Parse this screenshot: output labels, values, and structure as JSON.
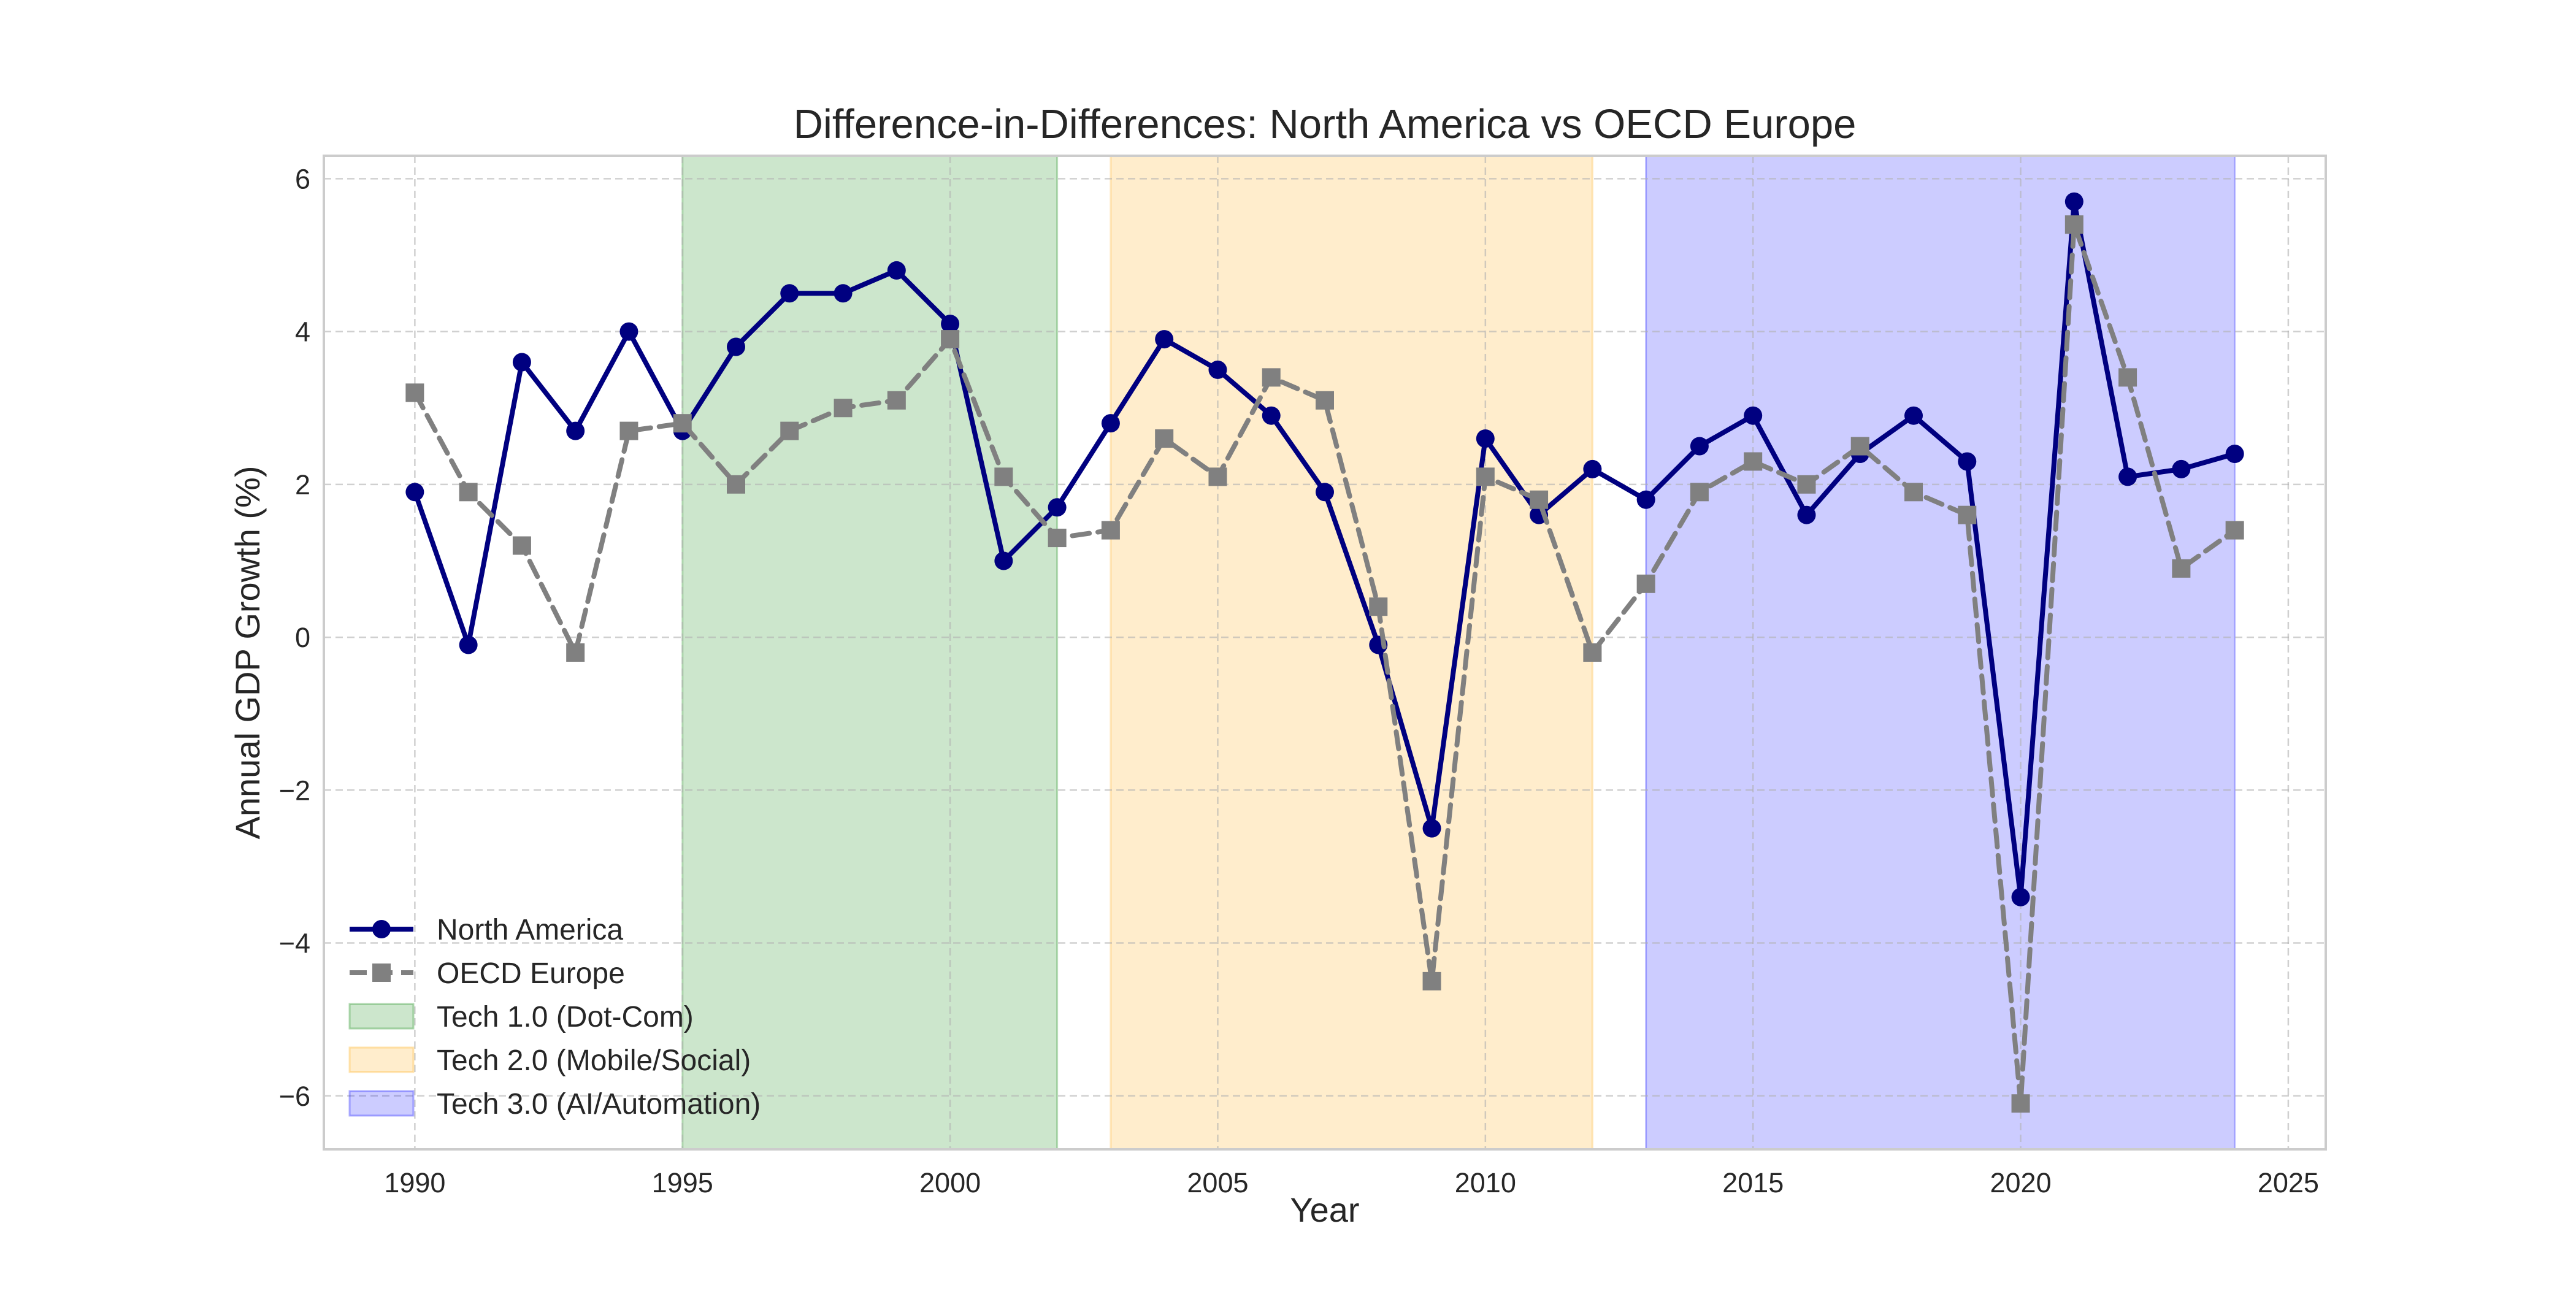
{
  "chart_data": {
    "type": "line",
    "title": "Difference-in-Differences: North America vs OECD Europe",
    "xlabel": "Year",
    "ylabel": "Annual GDP Growth (%)",
    "xlim": [
      1988.3,
      2025.7
    ],
    "ylim": [
      -6.7,
      6.3
    ],
    "xticks": [
      1990,
      1995,
      2000,
      2005,
      2010,
      2015,
      2020,
      2025
    ],
    "yticks": [
      -6,
      -4,
      -2,
      0,
      2,
      4,
      6
    ],
    "grid": true,
    "legend_position": "lower-left",
    "x": [
      1990,
      1991,
      1992,
      1993,
      1994,
      1995,
      1996,
      1997,
      1998,
      1999,
      2000,
      2001,
      2002,
      2003,
      2004,
      2005,
      2006,
      2007,
      2008,
      2009,
      2010,
      2011,
      2012,
      2013,
      2014,
      2015,
      2016,
      2017,
      2018,
      2019,
      2020,
      2021,
      2022,
      2023,
      2024
    ],
    "series": [
      {
        "name": "North America",
        "color": "#000080",
        "line_style": "solid",
        "marker": "circle",
        "values": [
          1.9,
          -0.1,
          3.6,
          2.7,
          4.0,
          2.7,
          3.8,
          4.5,
          4.5,
          4.8,
          4.1,
          1.0,
          1.7,
          2.8,
          3.9,
          3.5,
          2.9,
          1.9,
          -0.1,
          -2.5,
          2.6,
          1.6,
          2.2,
          1.8,
          2.5,
          2.9,
          1.6,
          2.4,
          2.9,
          2.3,
          -3.4,
          5.7,
          2.1,
          2.2,
          2.4
        ]
      },
      {
        "name": "OECD Europe",
        "color": "#808080",
        "line_style": "dashed",
        "marker": "square",
        "values": [
          3.2,
          1.9,
          1.2,
          -0.2,
          2.7,
          2.8,
          2.0,
          2.7,
          3.0,
          3.1,
          3.9,
          2.1,
          1.3,
          1.4,
          2.6,
          2.1,
          3.4,
          3.1,
          0.4,
          -4.5,
          2.1,
          1.8,
          -0.2,
          0.7,
          1.9,
          2.3,
          2.0,
          2.5,
          1.9,
          1.6,
          -6.1,
          5.4,
          3.4,
          0.9,
          1.4
        ]
      }
    ],
    "shaded_periods": [
      {
        "name": "Tech 1.0 (Dot-Com)",
        "start": 1995,
        "end": 2002,
        "color": "#008000",
        "opacity": 0.2
      },
      {
        "name": "Tech 2.0 (Mobile/Social)",
        "start": 2003,
        "end": 2012,
        "color": "#FFA500",
        "opacity": 0.2
      },
      {
        "name": "Tech 3.0 (AI/Automation)",
        "start": 2013,
        "end": 2024,
        "color": "#0000FF",
        "opacity": 0.2
      }
    ]
  }
}
